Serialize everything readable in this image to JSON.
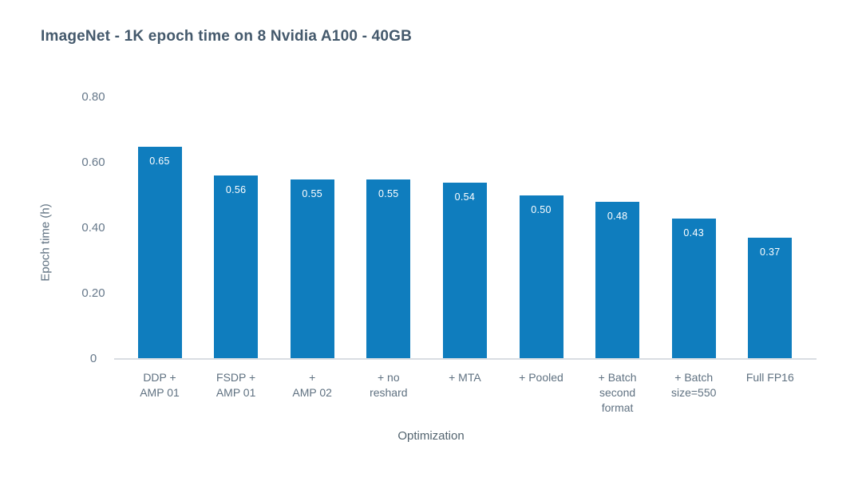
{
  "chart_data": {
    "type": "bar",
    "title": "ImageNet - 1K epoch time on 8 Nvidia A100 - 40GB",
    "xlabel": "Optimization",
    "ylabel": "Epoch time (h)",
    "categories": [
      "DDP +\nAMP 01",
      "FSDP +\nAMP 01",
      "+\nAMP 02",
      "+ no\nreshard",
      "+ MTA",
      "+ Pooled",
      "+ Batch\nsecond\nformat",
      "+ Batch\nsize=550",
      "Full FP16"
    ],
    "values": [
      0.65,
      0.56,
      0.55,
      0.55,
      0.54,
      0.5,
      0.48,
      0.43,
      0.37
    ],
    "value_labels": [
      "0.65",
      "0.56",
      "0.55",
      "0.55",
      "0.54",
      "0.50",
      "0.48",
      "0.43",
      "0.37"
    ],
    "yticks": [
      {
        "label": "0",
        "value": 0
      },
      {
        "label": "0.20",
        "value": 0.2
      },
      {
        "label": "0.40",
        "value": 0.4
      },
      {
        "label": "0.60",
        "value": 0.6
      },
      {
        "label": "0.80",
        "value": 0.8
      }
    ],
    "ylim": [
      0,
      0.8
    ],
    "grid": false,
    "legend_position": "none",
    "bar_value_labels_inside": true,
    "colors": {
      "bar": "#0f7dbe",
      "title_text": "#44596c",
      "tick_text": "#66788a",
      "category_text": "#5f7181",
      "axis_line": "#d9dde2",
      "value_label_text": "#ffffff",
      "background": "#ffffff"
    }
  }
}
